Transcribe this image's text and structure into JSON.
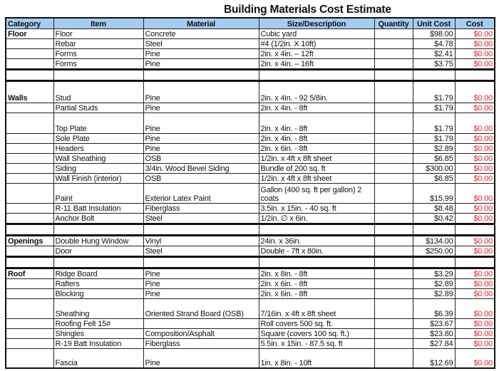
{
  "title": "Building Materials Cost Estimate",
  "columns": [
    "Category",
    "Item",
    "Material",
    "Size/Description",
    "Quantity",
    "Unit Cost",
    "Cost"
  ],
  "colors": {
    "header_bg": "#a6ccf2",
    "cost_text": "#e8202a"
  },
  "rows": [
    {
      "category": "Floor",
      "item": "Floor",
      "material": "Concrete",
      "size": "Cubic yard",
      "quantity": "",
      "unit_cost": "$98.00",
      "cost": "$0.00"
    },
    {
      "category": "",
      "item": "Rebar",
      "material": "Steel",
      "size": "#4  (1/2in. X 10ft)",
      "quantity": "",
      "unit_cost": "$4.78",
      "cost": "$0.00"
    },
    {
      "category": "",
      "item": "Forms",
      "material": "Pine",
      "size": "2in. x 4in. – 12ft",
      "quantity": "",
      "unit_cost": "$2.41",
      "cost": "$0.00"
    },
    {
      "category": "",
      "item": "Forms",
      "material": "Pine",
      "size": "2in. x 4in. – 16ft",
      "quantity": "",
      "unit_cost": "$3.75",
      "cost": "$0.00"
    },
    {
      "category": "",
      "item": "",
      "material": "",
      "size": "",
      "quantity": "",
      "unit_cost": "",
      "cost": ""
    },
    {
      "category": "Walls",
      "item": "Stud",
      "material": "Pine",
      "size": "2in. x 4in. - 92 5/8in.",
      "quantity": "",
      "unit_cost": "$1.79",
      "cost": "$0.00"
    },
    {
      "category": "",
      "item": "Partial Studs",
      "material": "Pine",
      "size": "2in. x 4in. - 8ft",
      "quantity": "",
      "unit_cost": "$1.79",
      "cost": "$0.00"
    },
    {
      "category": "",
      "item": "Top Plate",
      "material": "Pine",
      "size": "2in. x 4in. - 8ft",
      "quantity": "",
      "unit_cost": "$1.79",
      "cost": "$0.00"
    },
    {
      "category": "",
      "item": "Sole Plate",
      "material": "Pine",
      "size": "2in. x 4in. - 8ft",
      "quantity": "",
      "unit_cost": "$1.79",
      "cost": "$0.00"
    },
    {
      "category": "",
      "item": "Headers",
      "material": "Pine",
      "size": "2in. x 6in. - 8ft",
      "quantity": "",
      "unit_cost": "$2.89",
      "cost": "$0.00"
    },
    {
      "category": "",
      "item": "Wall Sheathing",
      "material": "OSB",
      "size": "1/2in. x 4ft x 8ft sheet",
      "quantity": "",
      "unit_cost": "$6.85",
      "cost": "$0.00"
    },
    {
      "category": "",
      "item": "Siding",
      "material": "3/4in. Wood  Bevel Siding",
      "size": "Bundle of 200 sq. ft",
      "quantity": "",
      "unit_cost": "$300.00",
      "cost": "$0.00"
    },
    {
      "category": "",
      "item": "Wall Finish (interior)",
      "material": "OSB",
      "size": "1/2in. x 4ft x 8ft  sheet",
      "quantity": "",
      "unit_cost": "$6.85",
      "cost": "$0.00"
    },
    {
      "category": "",
      "item": "Paint",
      "material": "Exterior Latex Paint",
      "size": "Gallon (400 sq. ft per gallon) 2 coats",
      "quantity": "",
      "unit_cost": "$15.99",
      "cost": "$0.00"
    },
    {
      "category": "",
      "item": "R-11 Batt Insulation",
      "material": "Fiberglass",
      "size": "3.5in. x 15in. - 40 sq. ft",
      "quantity": "",
      "unit_cost": "$8.48",
      "cost": "$0.00"
    },
    {
      "category": "",
      "item": "Anchor Bolt",
      "material": "Steel",
      "size": "1/2in. ∅ x 6in.",
      "quantity": "",
      "unit_cost": "$0.42",
      "cost": "$0.00"
    },
    {
      "category": "",
      "item": "",
      "material": "",
      "size": "",
      "quantity": "",
      "unit_cost": "",
      "cost": ""
    },
    {
      "category": "Openings",
      "item": "Double Hung Window",
      "material": "Vinyl",
      "size": "24in. x 36in.",
      "quantity": "",
      "unit_cost": "$134.00",
      "cost": "$0.00"
    },
    {
      "category": "",
      "item": "Door",
      "material": "Steel",
      "size": "Double - 7ft x 80in.",
      "quantity": "",
      "unit_cost": "$250.00",
      "cost": "$0.00"
    },
    {
      "category": "",
      "item": "",
      "material": "",
      "size": "",
      "quantity": "",
      "unit_cost": "",
      "cost": ""
    },
    {
      "category": "Roof",
      "item": "Ridge Board",
      "material": "Pine",
      "size": "2in. x 8in. - 8ft",
      "quantity": "",
      "unit_cost": "$3.29",
      "cost": "$0.00"
    },
    {
      "category": "",
      "item": "Rafters",
      "material": "Pine",
      "size": "2in. x 6in. - 8ft",
      "quantity": "",
      "unit_cost": "$2.89",
      "cost": "$0.00"
    },
    {
      "category": "",
      "item": "Blocking",
      "material": "Pine",
      "size": "2in. x 6in. - 8ft",
      "quantity": "",
      "unit_cost": "$2.89",
      "cost": "$0.00"
    },
    {
      "category": "",
      "item": "Sheathing",
      "material": "Oriented Strand Board (OSB)",
      "size": "7/16in. x 4ft x 8ft  sheet",
      "quantity": "",
      "unit_cost": "$6.39",
      "cost": "$0.00"
    },
    {
      "category": "",
      "item": "Roofing Felt 15#",
      "material": "",
      "size": "Roll covers 500 sq. ft.",
      "quantity": "",
      "unit_cost": "$23.67",
      "cost": "$0.00"
    },
    {
      "category": "",
      "item": "Shingles",
      "material": "Composition/Asphalt",
      "size": "Square (covers 100 sq. ft.)",
      "quantity": "",
      "unit_cost": "$23.80",
      "cost": "$0.00"
    },
    {
      "category": "",
      "item": "R-19 Batt Insulation",
      "material": "Fiberglass",
      "size": "5.5in. x 15in. - 87.5 sq. ft",
      "quantity": "",
      "unit_cost": "$27.84",
      "cost": "$0.00"
    },
    {
      "category": "",
      "item": "Fascia",
      "material": "Pine",
      "size": "1in. x 8in. - 10ft",
      "quantity": "",
      "unit_cost": "$12.69",
      "cost": "$0.00"
    }
  ]
}
